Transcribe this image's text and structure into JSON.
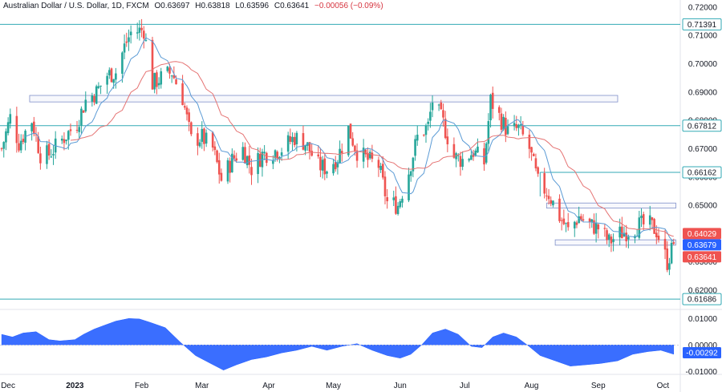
{
  "header": {
    "symbol": "Australian Dollar / U.S. Dollar, 1D, FXCM",
    "open": "O0.63697",
    "high": "H0.63818",
    "low": "L0.63596",
    "close": "C0.63641",
    "change": "−0.00056 (−0.09%)"
  },
  "colors": {
    "up": "#26a69a",
    "down": "#ef5350",
    "fast_ma": "#5b9bd5",
    "slow_ma": "#e57373",
    "level": "#33aab5",
    "zone": "#7f8fc9",
    "oscillator": "#2962ff"
  },
  "chart_data": [
    {
      "type": "candlestick",
      "x": [
        "Dec",
        "2023",
        "Feb",
        "Mar",
        "Apr",
        "May",
        "Jun",
        "Jul",
        "Aug",
        "Sep",
        "Oct"
      ],
      "price_axis": [
        "0.72000",
        "0.71000",
        "0.70000",
        "0.69000",
        "0.68000",
        "0.67000",
        "0.66000",
        "0.65000",
        "0.64000",
        "0.63000",
        "0.62000"
      ],
      "ylim": [
        0.6135,
        0.7225
      ],
      "levels": [
        {
          "label": "0.71391",
          "value": 0.71391
        },
        {
          "label": "0.67812",
          "value": 0.67812
        },
        {
          "label": "0.66162",
          "value": 0.66162
        },
        {
          "label": "0.61686",
          "value": 0.61686
        }
      ],
      "price_tags": [
        {
          "label": "0.64029",
          "value": 0.64029,
          "color": "#ef5350"
        },
        {
          "label": "0.63679",
          "value": 0.63679,
          "color": "#2962ff"
        },
        {
          "label": "0.63641",
          "value": 0.63641,
          "color": "#ef5350"
        }
      ],
      "zones": [
        {
          "x0": "2022-12-11",
          "x1": "2023-09-10",
          "y0": 0.6865,
          "y1": 0.6888
        },
        {
          "x0": "2023-08-08",
          "x1": "2023-10-07",
          "y0": 0.649,
          "y1": 0.6508
        },
        {
          "x0": "2023-08-12",
          "x1": "2023-10-07",
          "y0": 0.6359,
          "y1": 0.6378
        }
      ],
      "close_path": [
        [
          "2022-11-28",
          0.67
        ],
        [
          "2022-12-02",
          0.681
        ],
        [
          "2022-12-06",
          0.672
        ],
        [
          "2022-12-12",
          0.68
        ],
        [
          "2022-12-16",
          0.668
        ],
        [
          "2022-12-20",
          0.668
        ],
        [
          "2022-12-27",
          0.674
        ],
        [
          "2023-01-02",
          0.679
        ],
        [
          "2023-01-06",
          0.687
        ],
        [
          "2023-01-11",
          0.69
        ],
        [
          "2023-01-16",
          0.696
        ],
        [
          "2023-01-20",
          0.697
        ],
        [
          "2023-01-24",
          0.706
        ],
        [
          "2023-01-27",
          0.711
        ],
        [
          "2023-02-02",
          0.712
        ],
        [
          "2023-02-06",
          0.693
        ],
        [
          "2023-02-10",
          0.695
        ],
        [
          "2023-02-15",
          0.697
        ],
        [
          "2023-02-20",
          0.688
        ],
        [
          "2023-02-24",
          0.673
        ],
        [
          "2023-03-01",
          0.674
        ],
        [
          "2023-03-06",
          0.67
        ],
        [
          "2023-03-10",
          0.659
        ],
        [
          "2023-03-15",
          0.666
        ],
        [
          "2023-03-20",
          0.67
        ],
        [
          "2023-03-24",
          0.663
        ],
        [
          "2023-03-29",
          0.668
        ],
        [
          "2023-04-03",
          0.669
        ],
        [
          "2023-04-07",
          0.67
        ],
        [
          "2023-04-13",
          0.674
        ],
        [
          "2023-04-18",
          0.672
        ],
        [
          "2023-04-24",
          0.664
        ],
        [
          "2023-04-28",
          0.663
        ],
        [
          "2023-05-03",
          0.667
        ],
        [
          "2023-05-08",
          0.677
        ],
        [
          "2023-05-12",
          0.669
        ],
        [
          "2023-05-17",
          0.666
        ],
        [
          "2023-05-22",
          0.664
        ],
        [
          "2023-05-26",
          0.651
        ],
        [
          "2023-05-31",
          0.65
        ],
        [
          "2023-06-05",
          0.662
        ],
        [
          "2023-06-09",
          0.674
        ],
        [
          "2023-06-14",
          0.678
        ],
        [
          "2023-06-16",
          0.687
        ],
        [
          "2023-06-21",
          0.679
        ],
        [
          "2023-06-26",
          0.667
        ],
        [
          "2023-06-30",
          0.666
        ],
        [
          "2023-07-05",
          0.669
        ],
        [
          "2023-07-10",
          0.665
        ],
        [
          "2023-07-13",
          0.687
        ],
        [
          "2023-07-18",
          0.68
        ],
        [
          "2023-07-21",
          0.676
        ],
        [
          "2023-07-26",
          0.677
        ],
        [
          "2023-07-31",
          0.67
        ],
        [
          "2023-08-04",
          0.658
        ],
        [
          "2023-08-09",
          0.654
        ],
        [
          "2023-08-14",
          0.646
        ],
        [
          "2023-08-18",
          0.641
        ],
        [
          "2023-08-23",
          0.646
        ],
        [
          "2023-08-28",
          0.643
        ],
        [
          "2023-09-01",
          0.642
        ],
        [
          "2023-09-06",
          0.637
        ],
        [
          "2023-09-11",
          0.64
        ],
        [
          "2023-09-15",
          0.641
        ],
        [
          "2023-09-20",
          0.643
        ],
        [
          "2023-09-25",
          0.643
        ],
        [
          "2023-09-28",
          0.641
        ],
        [
          "2023-10-03",
          0.63
        ],
        [
          "2023-10-06",
          0.636
        ]
      ]
    },
    {
      "type": "area",
      "price_axis": [
        "0.01000",
        "0.00000",
        "-0.01000"
      ],
      "ylim": [
        -0.0108,
        0.0128
      ],
      "last_value": {
        "label": "-0.00292",
        "value": -0.00292
      },
      "series": [
        [
          "2022-11-28",
          0.004
        ],
        [
          "2022-12-03",
          0.003
        ],
        [
          "2022-12-08",
          0.0045
        ],
        [
          "2022-12-14",
          0.005
        ],
        [
          "2022-12-20",
          0.002
        ],
        [
          "2022-12-25",
          0.0015
        ],
        [
          "2023-01-01",
          0.002
        ],
        [
          "2023-01-05",
          0.004
        ],
        [
          "2023-01-10",
          0.006
        ],
        [
          "2023-01-15",
          0.0075
        ],
        [
          "2023-01-20",
          0.009
        ],
        [
          "2023-01-26",
          0.01
        ],
        [
          "2023-01-31",
          0.0098
        ],
        [
          "2023-02-05",
          0.0085
        ],
        [
          "2023-02-12",
          0.0065
        ],
        [
          "2023-02-19",
          0.001
        ],
        [
          "2023-02-26",
          -0.004
        ],
        [
          "2023-03-05",
          -0.007
        ],
        [
          "2023-03-11",
          -0.0095
        ],
        [
          "2023-03-17",
          -0.0075
        ],
        [
          "2023-03-24",
          -0.0055
        ],
        [
          "2023-03-31",
          -0.0045
        ],
        [
          "2023-04-07",
          -0.003
        ],
        [
          "2023-04-14",
          -0.002
        ],
        [
          "2023-04-21",
          -0.0005
        ],
        [
          "2023-04-28",
          -0.002
        ],
        [
          "2023-05-05",
          -0.0005
        ],
        [
          "2023-05-12",
          0.0005
        ],
        [
          "2023-05-19",
          -0.002
        ],
        [
          "2023-05-26",
          -0.004
        ],
        [
          "2023-06-01",
          -0.005
        ],
        [
          "2023-06-06",
          -0.0035
        ],
        [
          "2023-06-11",
          0.0
        ],
        [
          "2023-06-16",
          0.0045
        ],
        [
          "2023-06-22",
          0.006
        ],
        [
          "2023-06-28",
          0.004
        ],
        [
          "2023-07-04",
          -0.0005
        ],
        [
          "2023-07-09",
          -0.001
        ],
        [
          "2023-07-14",
          0.003
        ],
        [
          "2023-07-19",
          0.0045
        ],
        [
          "2023-07-25",
          0.003
        ],
        [
          "2023-07-30",
          0.0
        ],
        [
          "2023-08-05",
          -0.004
        ],
        [
          "2023-08-12",
          -0.006
        ],
        [
          "2023-08-19",
          -0.008
        ],
        [
          "2023-08-26",
          -0.0075
        ],
        [
          "2023-09-02",
          -0.007
        ],
        [
          "2023-09-10",
          -0.006
        ],
        [
          "2023-09-17",
          -0.0035
        ],
        [
          "2023-09-24",
          -0.0025
        ],
        [
          "2023-09-30",
          -0.002
        ],
        [
          "2023-10-06",
          -0.0035
        ]
      ]
    }
  ]
}
